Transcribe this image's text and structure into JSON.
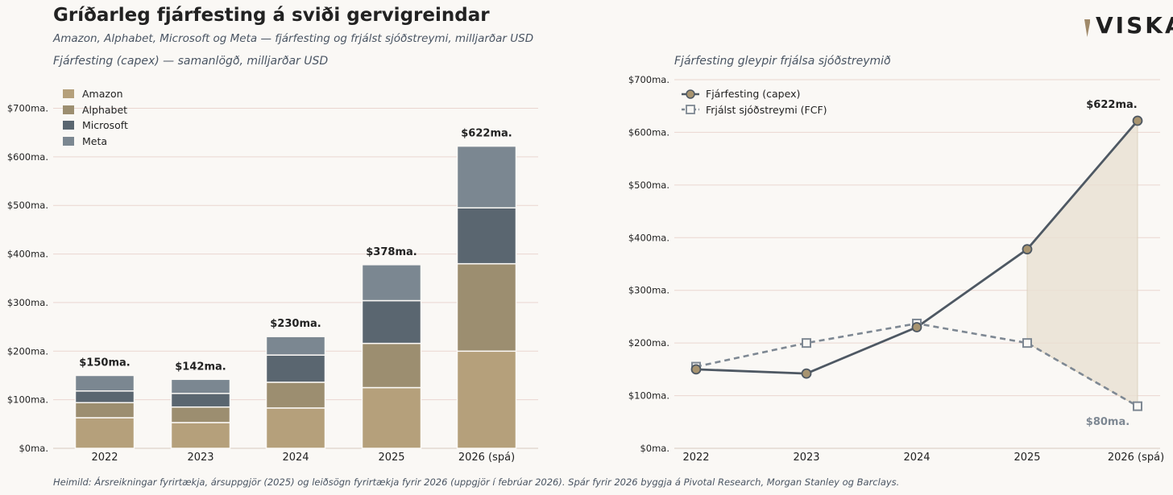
{
  "header": {
    "title": "Gríðarleg fjárfesting á sviði gervigreindar",
    "subtitle": "Amazon, Alphabet, Microsoft og Meta — fjárfesting og frjálst sjóðstreymi, milljarðar USD",
    "logo": "VISKA"
  },
  "footer": {
    "source": "Heimild: Ársreikningar fyrirtækja, ársuppgjör (2025) og leiðsögn fyrirtækja fyrir 2026 (uppgjör í febrúar 2026). Spár fyrir 2026 byggja á Pivotal Research, Morgan Stanley og Barclays."
  },
  "colors": {
    "amazon": "#b5a07b",
    "alphabet": "#9c8e70",
    "microsoft": "#5a6670",
    "meta": "#7b8791",
    "capex_line": "#4e5863",
    "capex_marker": "#a89470",
    "fcf_line": "#7e8893",
    "fill": "#e8e0d2",
    "grid": "#ead6d0",
    "logo_accent": "#a08a6a"
  },
  "chart_data": [
    {
      "type": "bar",
      "stacked": true,
      "title": "Fjárfesting (capex) — samanlögð, milljarðar USD",
      "categories": [
        "2022",
        "2023",
        "2024",
        "2025",
        "2026 (spá)"
      ],
      "series": [
        {
          "name": "Amazon",
          "values": [
            63,
            53,
            83,
            125,
            200
          ]
        },
        {
          "name": "Alphabet",
          "values": [
            31,
            32,
            53,
            91,
            180
          ]
        },
        {
          "name": "Microsoft",
          "values": [
            24,
            28,
            56,
            88,
            115
          ]
        },
        {
          "name": "Meta",
          "values": [
            32,
            29,
            38,
            74,
            127
          ]
        }
      ],
      "totals": [
        150,
        142,
        230,
        378,
        622
      ],
      "total_labels": [
        "$150ma.",
        "$142ma.",
        "$230ma.",
        "$378ma.",
        "$622ma."
      ],
      "ylim": [
        0,
        700
      ],
      "yticks": [
        0,
        100,
        200,
        300,
        400,
        500,
        600,
        700
      ],
      "ytick_labels": [
        "$0ma.",
        "$100ma.",
        "$200ma.",
        "$300ma.",
        "$400ma.",
        "$500ma.",
        "$600ma.",
        "$700ma."
      ],
      "legend_position": "top-left"
    },
    {
      "type": "line",
      "title": "Fjárfesting gleypir frjálsa sjóðstreymið",
      "categories": [
        "2022",
        "2023",
        "2024",
        "2025",
        "2026 (spá)"
      ],
      "series": [
        {
          "name": "Fjárfesting (capex)",
          "values": [
            150,
            142,
            230,
            378,
            622
          ]
        },
        {
          "name": "Frjálst sjóðstreymi (FCF)",
          "values": [
            155,
            200,
            237,
            200,
            80
          ]
        }
      ],
      "annotations": [
        {
          "text": "$622ma.",
          "category": "2026 (spá)",
          "series": "Fjárfesting (capex)"
        },
        {
          "text": "$80ma.",
          "category": "2026 (spá)",
          "series": "Frjálst sjóðstreymi (FCF)"
        }
      ],
      "shaded_gap": {
        "from": "2025",
        "to": "2026 (spá)"
      },
      "ylim": [
        0,
        700
      ],
      "yticks": [
        0,
        100,
        200,
        300,
        400,
        500,
        600,
        700
      ],
      "ytick_labels": [
        "$0ma.",
        "$100ma.",
        "$200ma.",
        "$300ma.",
        "$400ma.",
        "$500ma.",
        "$600ma.",
        "$700ma."
      ],
      "legend_position": "top-left"
    }
  ]
}
